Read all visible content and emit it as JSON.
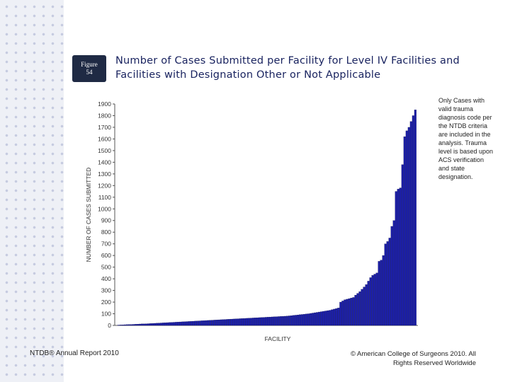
{
  "figure_badge": {
    "line1": "Figure",
    "line2": "54"
  },
  "title": "Number of Cases Submitted per Facility for Level IV Facilities and Facilities with Designation Other or Not Applicable",
  "side_note": "Only Cases with valid trauma diagnosis code per the NTDB criteria are included in the analysis. Trauma level is based upon ACS verification and state designation.",
  "footer": {
    "left": "NTDB® Annual Report 2010",
    "right": "© American College of Surgeons 2010. All Rights Reserved Worldwide"
  },
  "colors": {
    "bar_fill": "#1c1fa8",
    "bar_stroke": "#0a0c55",
    "title": "#1a2460",
    "badge": "#1f2a44"
  },
  "chart_data": {
    "type": "bar",
    "title": "Number of Cases Submitted per Facility for Level IV Facilities and Facilities with Designation Other or Not Applicable",
    "xlabel": "FACILITY",
    "ylabel": "NUMBER OF CASES SUBMITTED",
    "ylim": [
      0,
      1900
    ],
    "yticks": [
      0,
      100,
      200,
      300,
      400,
      500,
      600,
      700,
      800,
      900,
      1000,
      1100,
      1200,
      1300,
      1400,
      1500,
      1600,
      1700,
      1800,
      1900
    ],
    "values": [
      3,
      4,
      5,
      6,
      7,
      8,
      8,
      9,
      10,
      11,
      12,
      13,
      13,
      14,
      15,
      16,
      17,
      18,
      19,
      20,
      21,
      22,
      23,
      24,
      25,
      26,
      27,
      28,
      29,
      30,
      31,
      32,
      33,
      34,
      35,
      36,
      37,
      38,
      39,
      40,
      41,
      42,
      43,
      44,
      45,
      46,
      47,
      48,
      49,
      50,
      51,
      52,
      53,
      54,
      55,
      56,
      57,
      58,
      59,
      60,
      61,
      62,
      63,
      64,
      65,
      66,
      67,
      68,
      69,
      70,
      71,
      72,
      73,
      74,
      75,
      76,
      77,
      78,
      79,
      80,
      82,
      84,
      86,
      88,
      90,
      92,
      94,
      96,
      98,
      100,
      103,
      106,
      109,
      112,
      115,
      118,
      121,
      124,
      127,
      130,
      135,
      140,
      145,
      150,
      200,
      210,
      220,
      225,
      230,
      235,
      240,
      260,
      275,
      290,
      310,
      330,
      350,
      380,
      410,
      430,
      440,
      450,
      550,
      560,
      600,
      700,
      720,
      750,
      850,
      900,
      1150,
      1170,
      1180,
      1380,
      1620,
      1670,
      1700,
      1750,
      1800,
      1850
    ]
  }
}
